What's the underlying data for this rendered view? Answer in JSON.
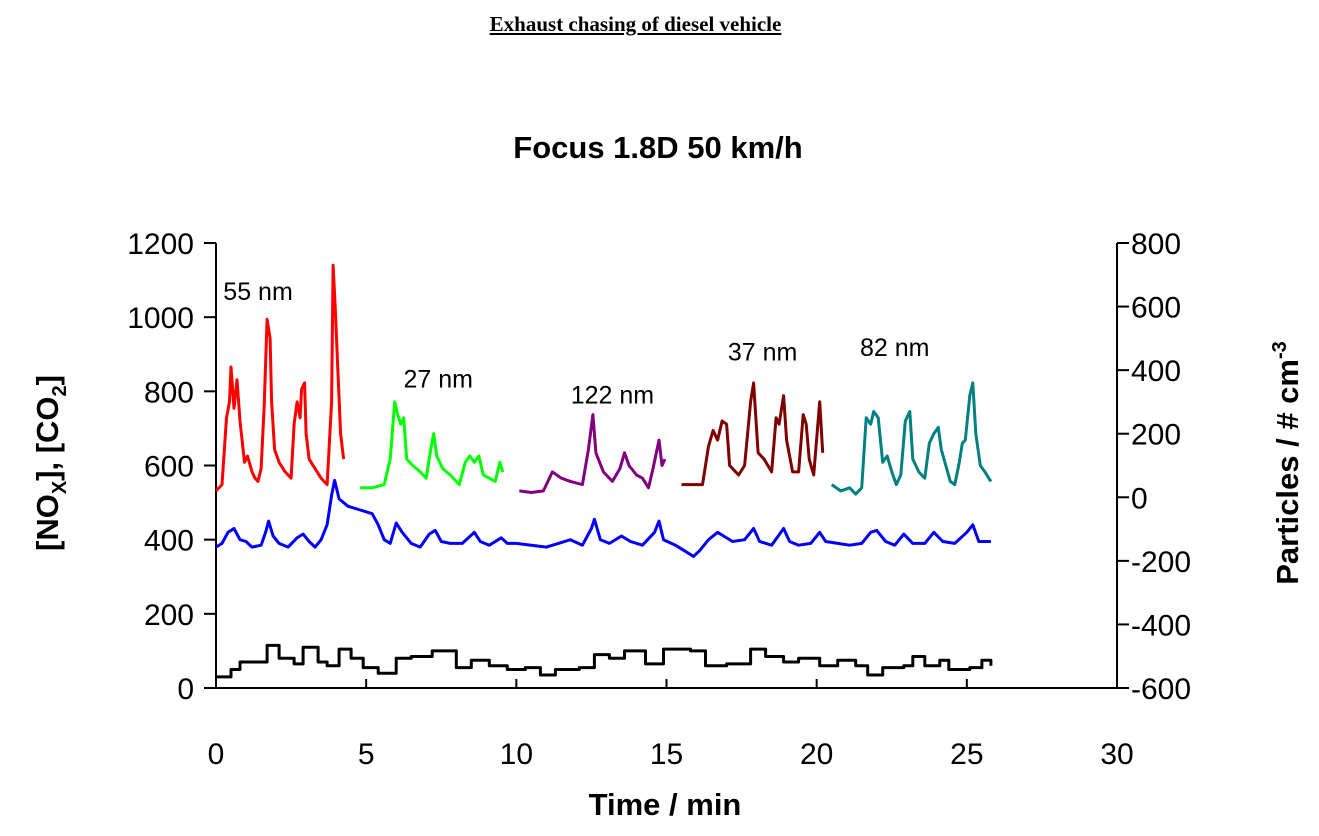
{
  "page": {
    "heading": "Exhaust chasing of diesel vehicle"
  },
  "chart_data": {
    "type": "line",
    "title": "Focus 1.8D 50 km/h",
    "xlabel": "Time / min",
    "ylabel_left": {
      "parts": [
        "[NO",
        "X",
        "], [CO",
        "2",
        "]"
      ]
    },
    "ylabel_right": {
      "parts": [
        "Particles / # cm",
        "-3"
      ]
    },
    "xlim": [
      0,
      30
    ],
    "xticks": [
      0,
      5,
      10,
      15,
      20,
      25,
      30
    ],
    "ylim_left": [
      0,
      1200
    ],
    "yticks_left": [
      0,
      200,
      400,
      600,
      800,
      1000,
      1200
    ],
    "ylim_right": [
      -600,
      800
    ],
    "yticks_right": [
      -600,
      -400,
      -200,
      0,
      200,
      400,
      600,
      800
    ],
    "grid": false,
    "series": [
      {
        "axis": "right",
        "color": "#ff0000",
        "label": "55 nm",
        "label_pos": [
          1.4,
          620
        ],
        "points": [
          [
            0,
            20
          ],
          [
            0.2,
            40
          ],
          [
            0.35,
            250
          ],
          [
            0.45,
            300
          ],
          [
            0.5,
            410
          ],
          [
            0.6,
            280
          ],
          [
            0.7,
            370
          ],
          [
            0.8,
            240
          ],
          [
            0.95,
            110
          ],
          [
            1.05,
            130
          ],
          [
            1.2,
            80
          ],
          [
            1.3,
            60
          ],
          [
            1.4,
            50
          ],
          [
            1.5,
            90
          ],
          [
            1.6,
            280
          ],
          [
            1.7,
            560
          ],
          [
            1.8,
            500
          ],
          [
            1.85,
            300
          ],
          [
            1.95,
            150
          ],
          [
            2.1,
            110
          ],
          [
            2.3,
            80
          ],
          [
            2.5,
            60
          ],
          [
            2.6,
            230
          ],
          [
            2.7,
            300
          ],
          [
            2.8,
            250
          ],
          [
            2.85,
            340
          ],
          [
            2.95,
            360
          ],
          [
            3.0,
            200
          ],
          [
            3.1,
            120
          ],
          [
            3.3,
            90
          ],
          [
            3.5,
            60
          ],
          [
            3.7,
            40
          ],
          [
            3.85,
            300
          ],
          [
            3.9,
            730
          ],
          [
            3.97,
            600
          ],
          [
            4.05,
            420
          ],
          [
            4.15,
            200
          ],
          [
            4.25,
            120
          ]
        ]
      },
      {
        "axis": "right",
        "color": "#00ff00",
        "label": "27 nm",
        "label_pos": [
          7.4,
          345
        ],
        "points": [
          [
            4.8,
            30
          ],
          [
            5.2,
            30
          ],
          [
            5.6,
            40
          ],
          [
            5.8,
            120
          ],
          [
            5.95,
            300
          ],
          [
            6.05,
            260
          ],
          [
            6.15,
            230
          ],
          [
            6.25,
            250
          ],
          [
            6.35,
            120
          ],
          [
            6.55,
            100
          ],
          [
            6.8,
            80
          ],
          [
            7.0,
            60
          ],
          [
            7.15,
            150
          ],
          [
            7.25,
            200
          ],
          [
            7.35,
            130
          ],
          [
            7.55,
            90
          ],
          [
            7.8,
            70
          ],
          [
            8.1,
            40
          ],
          [
            8.3,
            110
          ],
          [
            8.45,
            130
          ],
          [
            8.6,
            110
          ],
          [
            8.75,
            130
          ],
          [
            8.9,
            70
          ],
          [
            9.1,
            60
          ],
          [
            9.3,
            50
          ],
          [
            9.45,
            110
          ],
          [
            9.55,
            80
          ]
        ]
      },
      {
        "axis": "right",
        "color": "#800080",
        "label": "122 nm",
        "label_pos": [
          13.2,
          295
        ],
        "points": [
          [
            10.1,
            20
          ],
          [
            10.5,
            15
          ],
          [
            10.9,
            20
          ],
          [
            11.2,
            80
          ],
          [
            11.5,
            60
          ],
          [
            11.8,
            50
          ],
          [
            12.2,
            40
          ],
          [
            12.4,
            150
          ],
          [
            12.55,
            260
          ],
          [
            12.65,
            140
          ],
          [
            12.9,
            80
          ],
          [
            13.2,
            50
          ],
          [
            13.45,
            90
          ],
          [
            13.6,
            140
          ],
          [
            13.75,
            100
          ],
          [
            14.0,
            70
          ],
          [
            14.2,
            60
          ],
          [
            14.4,
            30
          ],
          [
            14.55,
            90
          ],
          [
            14.75,
            180
          ],
          [
            14.85,
            100
          ],
          [
            14.95,
            120
          ]
        ]
      },
      {
        "axis": "right",
        "color": "#800000",
        "label": "37 nm",
        "label_pos": [
          18.2,
          430
        ],
        "points": [
          [
            15.5,
            40
          ],
          [
            15.8,
            40
          ],
          [
            16.2,
            40
          ],
          [
            16.4,
            160
          ],
          [
            16.55,
            210
          ],
          [
            16.7,
            180
          ],
          [
            16.85,
            240
          ],
          [
            17.0,
            230
          ],
          [
            17.1,
            100
          ],
          [
            17.4,
            70
          ],
          [
            17.6,
            100
          ],
          [
            17.8,
            300
          ],
          [
            17.9,
            360
          ],
          [
            18.05,
            140
          ],
          [
            18.25,
            120
          ],
          [
            18.5,
            80
          ],
          [
            18.65,
            250
          ],
          [
            18.75,
            230
          ],
          [
            18.9,
            320
          ],
          [
            19.0,
            180
          ],
          [
            19.2,
            80
          ],
          [
            19.4,
            80
          ],
          [
            19.55,
            260
          ],
          [
            19.65,
            230
          ],
          [
            19.75,
            120
          ],
          [
            19.9,
            70
          ],
          [
            20.1,
            300
          ],
          [
            20.2,
            140
          ]
        ]
      },
      {
        "axis": "right",
        "color": "#008080",
        "label": "82 nm",
        "label_pos": [
          22.6,
          445
        ],
        "points": [
          [
            20.5,
            40
          ],
          [
            20.8,
            20
          ],
          [
            21.1,
            30
          ],
          [
            21.3,
            10
          ],
          [
            21.5,
            30
          ],
          [
            21.65,
            250
          ],
          [
            21.8,
            230
          ],
          [
            21.9,
            270
          ],
          [
            22.05,
            250
          ],
          [
            22.2,
            110
          ],
          [
            22.35,
            130
          ],
          [
            22.5,
            80
          ],
          [
            22.65,
            40
          ],
          [
            22.8,
            70
          ],
          [
            22.95,
            240
          ],
          [
            23.1,
            270
          ],
          [
            23.2,
            120
          ],
          [
            23.4,
            80
          ],
          [
            23.6,
            60
          ],
          [
            23.75,
            170
          ],
          [
            23.9,
            200
          ],
          [
            24.05,
            220
          ],
          [
            24.15,
            150
          ],
          [
            24.3,
            100
          ],
          [
            24.45,
            50
          ],
          [
            24.6,
            40
          ],
          [
            24.75,
            110
          ],
          [
            24.85,
            170
          ],
          [
            24.95,
            180
          ],
          [
            25.1,
            320
          ],
          [
            25.2,
            360
          ],
          [
            25.3,
            200
          ],
          [
            25.45,
            100
          ],
          [
            25.6,
            80
          ],
          [
            25.8,
            50
          ]
        ]
      },
      {
        "axis": "left",
        "color": "#0000ff",
        "points": [
          [
            0,
            380
          ],
          [
            0.2,
            390
          ],
          [
            0.4,
            420
          ],
          [
            0.6,
            430
          ],
          [
            0.8,
            400
          ],
          [
            1.0,
            395
          ],
          [
            1.2,
            380
          ],
          [
            1.5,
            385
          ],
          [
            1.65,
            420
          ],
          [
            1.75,
            450
          ],
          [
            1.9,
            410
          ],
          [
            2.1,
            390
          ],
          [
            2.4,
            380
          ],
          [
            2.7,
            405
          ],
          [
            2.9,
            415
          ],
          [
            3.1,
            395
          ],
          [
            3.3,
            380
          ],
          [
            3.5,
            400
          ],
          [
            3.7,
            440
          ],
          [
            3.85,
            520
          ],
          [
            3.95,
            560
          ],
          [
            4.1,
            510
          ],
          [
            4.4,
            490
          ],
          [
            4.8,
            480
          ],
          [
            5.2,
            470
          ],
          [
            5.4,
            440
          ],
          [
            5.6,
            400
          ],
          [
            5.8,
            390
          ],
          [
            6.0,
            445
          ],
          [
            6.2,
            420
          ],
          [
            6.5,
            390
          ],
          [
            6.8,
            380
          ],
          [
            7.1,
            415
          ],
          [
            7.3,
            425
          ],
          [
            7.5,
            395
          ],
          [
            7.8,
            390
          ],
          [
            8.2,
            390
          ],
          [
            8.6,
            420
          ],
          [
            8.8,
            395
          ],
          [
            9.1,
            385
          ],
          [
            9.5,
            405
          ],
          [
            9.7,
            390
          ],
          [
            10.0,
            390
          ],
          [
            10.5,
            385
          ],
          [
            11.0,
            380
          ],
          [
            11.4,
            390
          ],
          [
            11.8,
            400
          ],
          [
            12.2,
            385
          ],
          [
            12.5,
            430
          ],
          [
            12.6,
            455
          ],
          [
            12.8,
            400
          ],
          [
            13.1,
            390
          ],
          [
            13.5,
            410
          ],
          [
            13.8,
            395
          ],
          [
            14.2,
            385
          ],
          [
            14.6,
            420
          ],
          [
            14.75,
            450
          ],
          [
            14.9,
            400
          ],
          [
            15.3,
            385
          ],
          [
            15.6,
            370
          ],
          [
            15.9,
            355
          ],
          [
            16.1,
            370
          ],
          [
            16.4,
            400
          ],
          [
            16.7,
            420
          ],
          [
            16.9,
            410
          ],
          [
            17.2,
            395
          ],
          [
            17.6,
            400
          ],
          [
            17.9,
            430
          ],
          [
            18.1,
            395
          ],
          [
            18.5,
            385
          ],
          [
            18.9,
            430
          ],
          [
            19.1,
            395
          ],
          [
            19.4,
            385
          ],
          [
            19.8,
            390
          ],
          [
            20.1,
            420
          ],
          [
            20.3,
            395
          ],
          [
            20.7,
            390
          ],
          [
            21.1,
            385
          ],
          [
            21.5,
            390
          ],
          [
            21.8,
            420
          ],
          [
            22.0,
            425
          ],
          [
            22.3,
            395
          ],
          [
            22.6,
            385
          ],
          [
            22.9,
            415
          ],
          [
            23.2,
            390
          ],
          [
            23.6,
            390
          ],
          [
            23.9,
            420
          ],
          [
            24.2,
            395
          ],
          [
            24.6,
            390
          ],
          [
            25.0,
            420
          ],
          [
            25.2,
            440
          ],
          [
            25.4,
            395
          ],
          [
            25.8,
            395
          ]
        ]
      },
      {
        "axis": "left",
        "color": "#000000",
        "step": true,
        "points": [
          [
            0,
            30
          ],
          [
            0.5,
            50
          ],
          [
            0.8,
            70
          ],
          [
            1.7,
            115
          ],
          [
            2.1,
            80
          ],
          [
            2.6,
            65
          ],
          [
            2.9,
            110
          ],
          [
            3.4,
            70
          ],
          [
            3.7,
            60
          ],
          [
            4.1,
            105
          ],
          [
            4.5,
            80
          ],
          [
            4.9,
            55
          ],
          [
            5.4,
            40
          ],
          [
            6.0,
            80
          ],
          [
            6.5,
            85
          ],
          [
            7.2,
            100
          ],
          [
            8.0,
            55
          ],
          [
            8.5,
            75
          ],
          [
            9.1,
            60
          ],
          [
            9.7,
            50
          ],
          [
            10.3,
            55
          ],
          [
            10.8,
            35
          ],
          [
            11.3,
            50
          ],
          [
            12.1,
            55
          ],
          [
            12.6,
            90
          ],
          [
            13.1,
            80
          ],
          [
            13.6,
            100
          ],
          [
            14.3,
            65
          ],
          [
            14.9,
            105
          ],
          [
            15.8,
            100
          ],
          [
            16.3,
            60
          ],
          [
            17.0,
            65
          ],
          [
            17.8,
            105
          ],
          [
            18.3,
            85
          ],
          [
            18.9,
            70
          ],
          [
            19.4,
            80
          ],
          [
            20.1,
            60
          ],
          [
            20.7,
            75
          ],
          [
            21.3,
            60
          ],
          [
            21.7,
            35
          ],
          [
            22.2,
            55
          ],
          [
            22.9,
            60
          ],
          [
            23.2,
            85
          ],
          [
            23.6,
            60
          ],
          [
            24.1,
            75
          ],
          [
            24.4,
            50
          ],
          [
            25.1,
            55
          ],
          [
            25.5,
            75
          ],
          [
            25.8,
            60
          ]
        ]
      }
    ]
  }
}
